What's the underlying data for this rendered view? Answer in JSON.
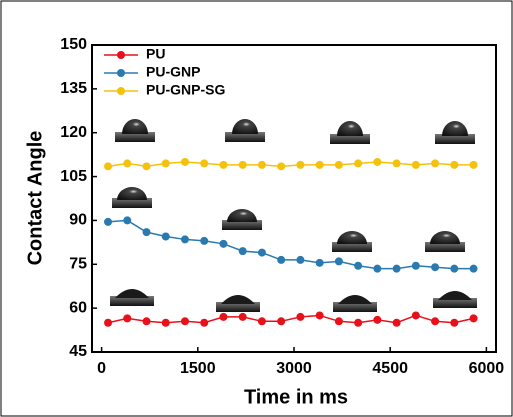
{
  "chart_data": {
    "type": "line",
    "xlabel": "Time in ms",
    "ylabel": "Contact Angle",
    "x": [
      100,
      400,
      700,
      1000,
      1300,
      1600,
      1900,
      2200,
      2500,
      2800,
      3100,
      3400,
      3700,
      4000,
      4300,
      4600,
      4900,
      5200,
      5500,
      5800
    ],
    "series": [
      {
        "name": "PU",
        "color": "#e8101a",
        "values": [
          55,
          56.5,
          55.5,
          55,
          55.5,
          55,
          57,
          57,
          55.5,
          55.5,
          57,
          57.5,
          55.5,
          55,
          56,
          55,
          57.5,
          55.5,
          55,
          56.5
        ]
      },
      {
        "name": "PU-GNP",
        "color": "#2a7ab0",
        "values": [
          89.5,
          90,
          86,
          84.5,
          83.5,
          83,
          82,
          79.5,
          79,
          76.5,
          76.5,
          75.5,
          76,
          74.5,
          73.5,
          73.5,
          74.5,
          74,
          73.5,
          73.5
        ]
      },
      {
        "name": "PU-GNP-SG",
        "color": "#f4c20d",
        "values": [
          108.5,
          109.5,
          108.5,
          109.5,
          110,
          109.5,
          109,
          109,
          109,
          108.5,
          109,
          109,
          109,
          109.5,
          110,
          109.5,
          109,
          109.5,
          109,
          109
        ]
      }
    ],
    "xlim": [
      -150,
      6150
    ],
    "xticks": [
      0,
      1500,
      3000,
      4500,
      6000
    ],
    "ylim": [
      45,
      150
    ],
    "yticks": [
      45,
      60,
      75,
      90,
      105,
      120,
      135,
      150
    ],
    "legend": "upper left"
  }
}
